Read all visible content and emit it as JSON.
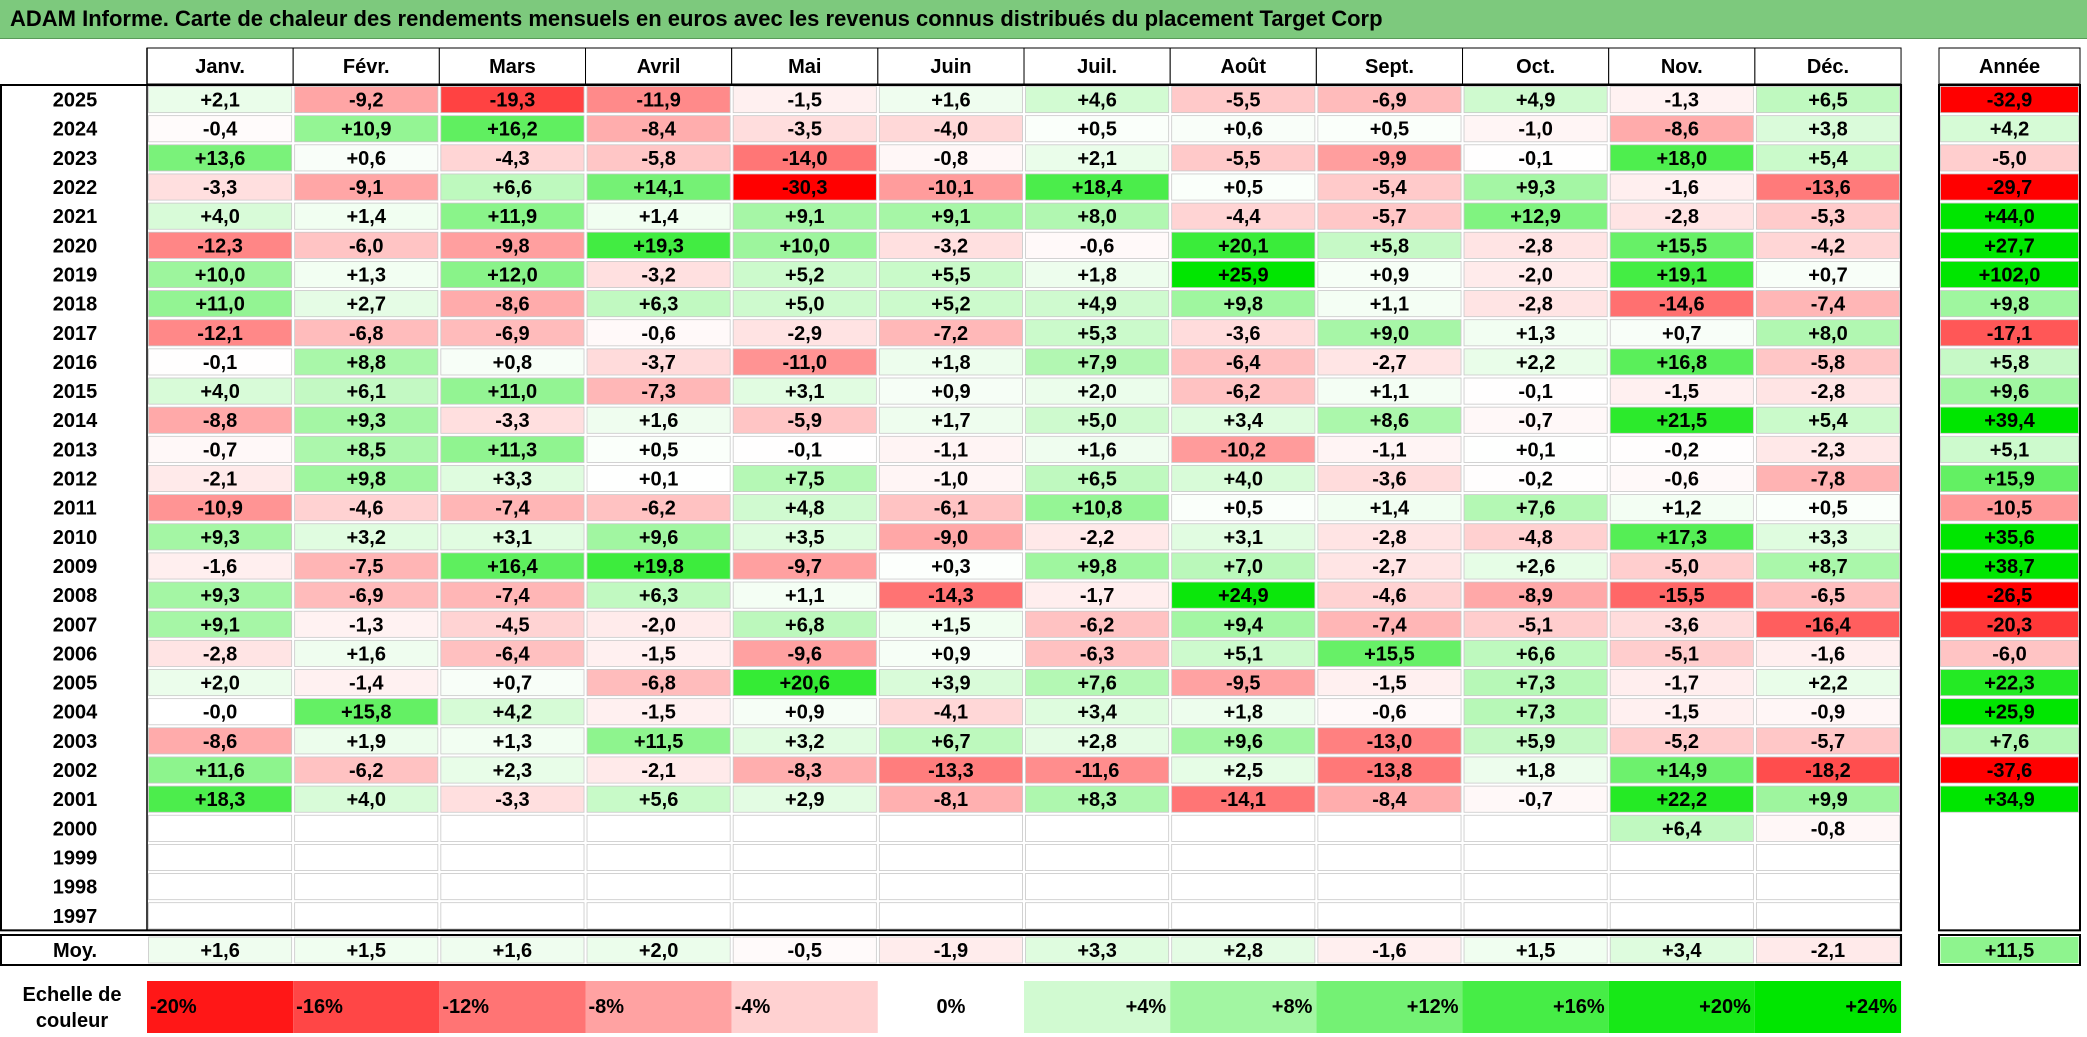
{
  "title": "ADAM Informe. Carte de chaleur des rendements mensuels en euros avec les revenus connus distribués du placement Target Corp",
  "chart_data": {
    "type": "heatmap",
    "title": "ADAM Informe. Carte de chaleur des rendements mensuels en euros avec les revenus connus distribués du placement Target Corp",
    "months": [
      "Janv.",
      "Févr.",
      "Mars",
      "Avril",
      "Mai",
      "Juin",
      "Juil.",
      "Août",
      "Sept.",
      "Oct.",
      "Nov.",
      "Déc."
    ],
    "year_label": "Année",
    "avg_label": "Moy.",
    "scale_label": [
      "Echelle de",
      "couleur"
    ],
    "rows": [
      {
        "year": "2025",
        "values": [
          "+2,1",
          "-9,2",
          "-19,3",
          "-11,9",
          "-1,5",
          "+1,6",
          "+4,6",
          "-5,5",
          "-6,9",
          "+4,9",
          "-1,3",
          "+6,5"
        ],
        "annual": "-32,9"
      },
      {
        "year": "2024",
        "values": [
          "-0,4",
          "+10,9",
          "+16,2",
          "-8,4",
          "-3,5",
          "-4,0",
          "+0,5",
          "+0,6",
          "+0,5",
          "-1,0",
          "-8,6",
          "+3,8"
        ],
        "annual": "+4,2"
      },
      {
        "year": "2023",
        "values": [
          "+13,6",
          "+0,6",
          "-4,3",
          "-5,8",
          "-14,0",
          "-0,8",
          "+2,1",
          "-5,5",
          "-9,9",
          "-0,1",
          "+18,0",
          "+5,4"
        ],
        "annual": "-5,0"
      },
      {
        "year": "2022",
        "values": [
          "-3,3",
          "-9,1",
          "+6,6",
          "+14,1",
          "-30,3",
          "-10,1",
          "+18,4",
          "+0,5",
          "-5,4",
          "+9,3",
          "-1,6",
          "-13,6"
        ],
        "annual": "-29,7"
      },
      {
        "year": "2021",
        "values": [
          "+4,0",
          "+1,4",
          "+11,9",
          "+1,4",
          "+9,1",
          "+9,1",
          "+8,0",
          "-4,4",
          "-5,7",
          "+12,9",
          "-2,8",
          "-5,3"
        ],
        "annual": "+44,0"
      },
      {
        "year": "2020",
        "values": [
          "-12,3",
          "-6,0",
          "-9,8",
          "+19,3",
          "+10,0",
          "-3,2",
          "-0,6",
          "+20,1",
          "+5,8",
          "-2,8",
          "+15,5",
          "-4,2"
        ],
        "annual": "+27,7"
      },
      {
        "year": "2019",
        "values": [
          "+10,0",
          "+1,3",
          "+12,0",
          "-3,2",
          "+5,2",
          "+5,5",
          "+1,8",
          "+25,9",
          "+0,9",
          "-2,0",
          "+19,1",
          "+0,7"
        ],
        "annual": "+102,0"
      },
      {
        "year": "2018",
        "values": [
          "+11,0",
          "+2,7",
          "-8,6",
          "+6,3",
          "+5,0",
          "+5,2",
          "+4,9",
          "+9,8",
          "+1,1",
          "-2,8",
          "-14,6",
          "-7,4"
        ],
        "annual": "+9,8"
      },
      {
        "year": "2017",
        "values": [
          "-12,1",
          "-6,8",
          "-6,9",
          "-0,6",
          "-2,9",
          "-7,2",
          "+5,3",
          "-3,6",
          "+9,0",
          "+1,3",
          "+0,7",
          "+8,0"
        ],
        "annual": "-17,1"
      },
      {
        "year": "2016",
        "values": [
          "-0,1",
          "+8,8",
          "+0,8",
          "-3,7",
          "-11,0",
          "+1,8",
          "+7,9",
          "-6,4",
          "-2,7",
          "+2,2",
          "+16,8",
          "-5,8"
        ],
        "annual": "+5,8"
      },
      {
        "year": "2015",
        "values": [
          "+4,0",
          "+6,1",
          "+11,0",
          "-7,3",
          "+3,1",
          "+0,9",
          "+2,0",
          "-6,2",
          "+1,1",
          "-0,1",
          "-1,5",
          "-2,8"
        ],
        "annual": "+9,6"
      },
      {
        "year": "2014",
        "values": [
          "-8,8",
          "+9,3",
          "-3,3",
          "+1,6",
          "-5,9",
          "+1,7",
          "+5,0",
          "+3,4",
          "+8,6",
          "-0,7",
          "+21,5",
          "+5,4"
        ],
        "annual": "+39,4"
      },
      {
        "year": "2013",
        "values": [
          "-0,7",
          "+8,5",
          "+11,3",
          "+0,5",
          "-0,1",
          "-1,1",
          "+1,6",
          "-10,2",
          "-1,1",
          "+0,1",
          "-0,2",
          "-2,3"
        ],
        "annual": "+5,1"
      },
      {
        "year": "2012",
        "values": [
          "-2,1",
          "+9,8",
          "+3,3",
          "+0,1",
          "+7,5",
          "-1,0",
          "+6,5",
          "+4,0",
          "-3,6",
          "-0,2",
          "-0,6",
          "-7,8"
        ],
        "annual": "+15,9"
      },
      {
        "year": "2011",
        "values": [
          "-10,9",
          "-4,6",
          "-7,4",
          "-6,2",
          "+4,8",
          "-6,1",
          "+10,8",
          "+0,5",
          "+1,4",
          "+7,6",
          "+1,2",
          "+0,5"
        ],
        "annual": "-10,5"
      },
      {
        "year": "2010",
        "values": [
          "+9,3",
          "+3,2",
          "+3,1",
          "+9,6",
          "+3,5",
          "-9,0",
          "-2,2",
          "+3,1",
          "-2,8",
          "-4,8",
          "+17,3",
          "+3,3"
        ],
        "annual": "+35,6"
      },
      {
        "year": "2009",
        "values": [
          "-1,6",
          "-7,5",
          "+16,4",
          "+19,8",
          "-9,7",
          "+0,3",
          "+9,8",
          "+7,0",
          "-2,7",
          "+2,6",
          "-5,0",
          "+8,7"
        ],
        "annual": "+38,7"
      },
      {
        "year": "2008",
        "values": [
          "+9,3",
          "-6,9",
          "-7,4",
          "+6,3",
          "+1,1",
          "-14,3",
          "-1,7",
          "+24,9",
          "-4,6",
          "-8,9",
          "-15,5",
          "-6,5"
        ],
        "annual": "-26,5"
      },
      {
        "year": "2007",
        "values": [
          "+9,1",
          "-1,3",
          "-4,5",
          "-2,0",
          "+6,8",
          "+1,5",
          "-6,2",
          "+9,4",
          "-7,4",
          "-5,1",
          "-3,6",
          "-16,4"
        ],
        "annual": "-20,3"
      },
      {
        "year": "2006",
        "values": [
          "-2,8",
          "+1,6",
          "-6,4",
          "-1,5",
          "-9,6",
          "+0,9",
          "-6,3",
          "+5,1",
          "+15,5",
          "+6,6",
          "-5,1",
          "-1,6"
        ],
        "annual": "-6,0"
      },
      {
        "year": "2005",
        "values": [
          "+2,0",
          "-1,4",
          "+0,7",
          "-6,8",
          "+20,6",
          "+3,9",
          "+7,6",
          "-9,5",
          "-1,5",
          "+7,3",
          "-1,7",
          "+2,2"
        ],
        "annual": "+22,3"
      },
      {
        "year": "2004",
        "values": [
          "-0,0",
          "+15,8",
          "+4,2",
          "-1,5",
          "+0,9",
          "-4,1",
          "+3,4",
          "+1,8",
          "-0,6",
          "+7,3",
          "-1,5",
          "-0,9"
        ],
        "annual": "+25,9"
      },
      {
        "year": "2003",
        "values": [
          "-8,6",
          "+1,9",
          "+1,3",
          "+11,5",
          "+3,2",
          "+6,7",
          "+2,8",
          "+9,6",
          "-13,0",
          "+5,9",
          "-5,2",
          "-5,7"
        ],
        "annual": "+7,6"
      },
      {
        "year": "2002",
        "values": [
          "+11,6",
          "-6,2",
          "+2,3",
          "-2,1",
          "-8,3",
          "-13,3",
          "-11,6",
          "+2,5",
          "-13,8",
          "+1,8",
          "+14,9",
          "-18,2"
        ],
        "annual": "-37,6"
      },
      {
        "year": "2001",
        "values": [
          "+18,3",
          "+4,0",
          "-3,3",
          "+5,6",
          "+2,9",
          "-8,1",
          "+8,3",
          "-14,1",
          "-8,4",
          "-0,7",
          "+22,2",
          "+9,9"
        ],
        "annual": "+34,9"
      },
      {
        "year": "2000",
        "values": [
          "",
          "",
          "",
          "",
          "",
          "",
          "",
          "",
          "",
          "",
          "+6,4",
          "-0,8"
        ],
        "annual": ""
      },
      {
        "year": "1999",
        "values": [
          "",
          "",
          "",
          "",
          "",
          "",
          "",
          "",
          "",
          "",
          "",
          ""
        ],
        "annual": ""
      },
      {
        "year": "1998",
        "values": [
          "",
          "",
          "",
          "",
          "",
          "",
          "",
          "",
          "",
          "",
          "",
          ""
        ],
        "annual": ""
      },
      {
        "year": "1997",
        "values": [
          "",
          "",
          "",
          "",
          "",
          "",
          "",
          "",
          "",
          "",
          "",
          ""
        ],
        "annual": ""
      }
    ],
    "averages": [
      "+1,6",
      "+1,5",
      "+1,6",
      "+2,0",
      "-0,5",
      "-1,9",
      "+3,3",
      "+2,8",
      "-1,6",
      "+1,5",
      "+3,4",
      "-2,1"
    ],
    "average_annual": "+11,5",
    "scale": [
      {
        "label": "-20%",
        "value": -20,
        "align": "left"
      },
      {
        "label": "-16%",
        "value": -16,
        "align": "left"
      },
      {
        "label": "-12%",
        "value": -12,
        "align": "left"
      },
      {
        "label": "-8%",
        "value": -8,
        "align": "left"
      },
      {
        "label": "-4%",
        "value": -4,
        "align": "left"
      },
      {
        "label": "0%",
        "value": 0,
        "align": "center"
      },
      {
        "label": "+4%",
        "value": 4,
        "align": "right"
      },
      {
        "label": "+8%",
        "value": 8,
        "align": "right"
      },
      {
        "label": "+12%",
        "value": 12,
        "align": "right"
      },
      {
        "label": "+16%",
        "value": 16,
        "align": "right"
      },
      {
        "label": "+20%",
        "value": 20,
        "align": "right"
      },
      {
        "label": "+24%",
        "value": 24,
        "align": "right"
      }
    ],
    "colors": {
      "negative_max": "#ff0000",
      "neutral": "#ffffff",
      "positive_max": "#00e600",
      "title_bar": "#7dc97d"
    }
  }
}
